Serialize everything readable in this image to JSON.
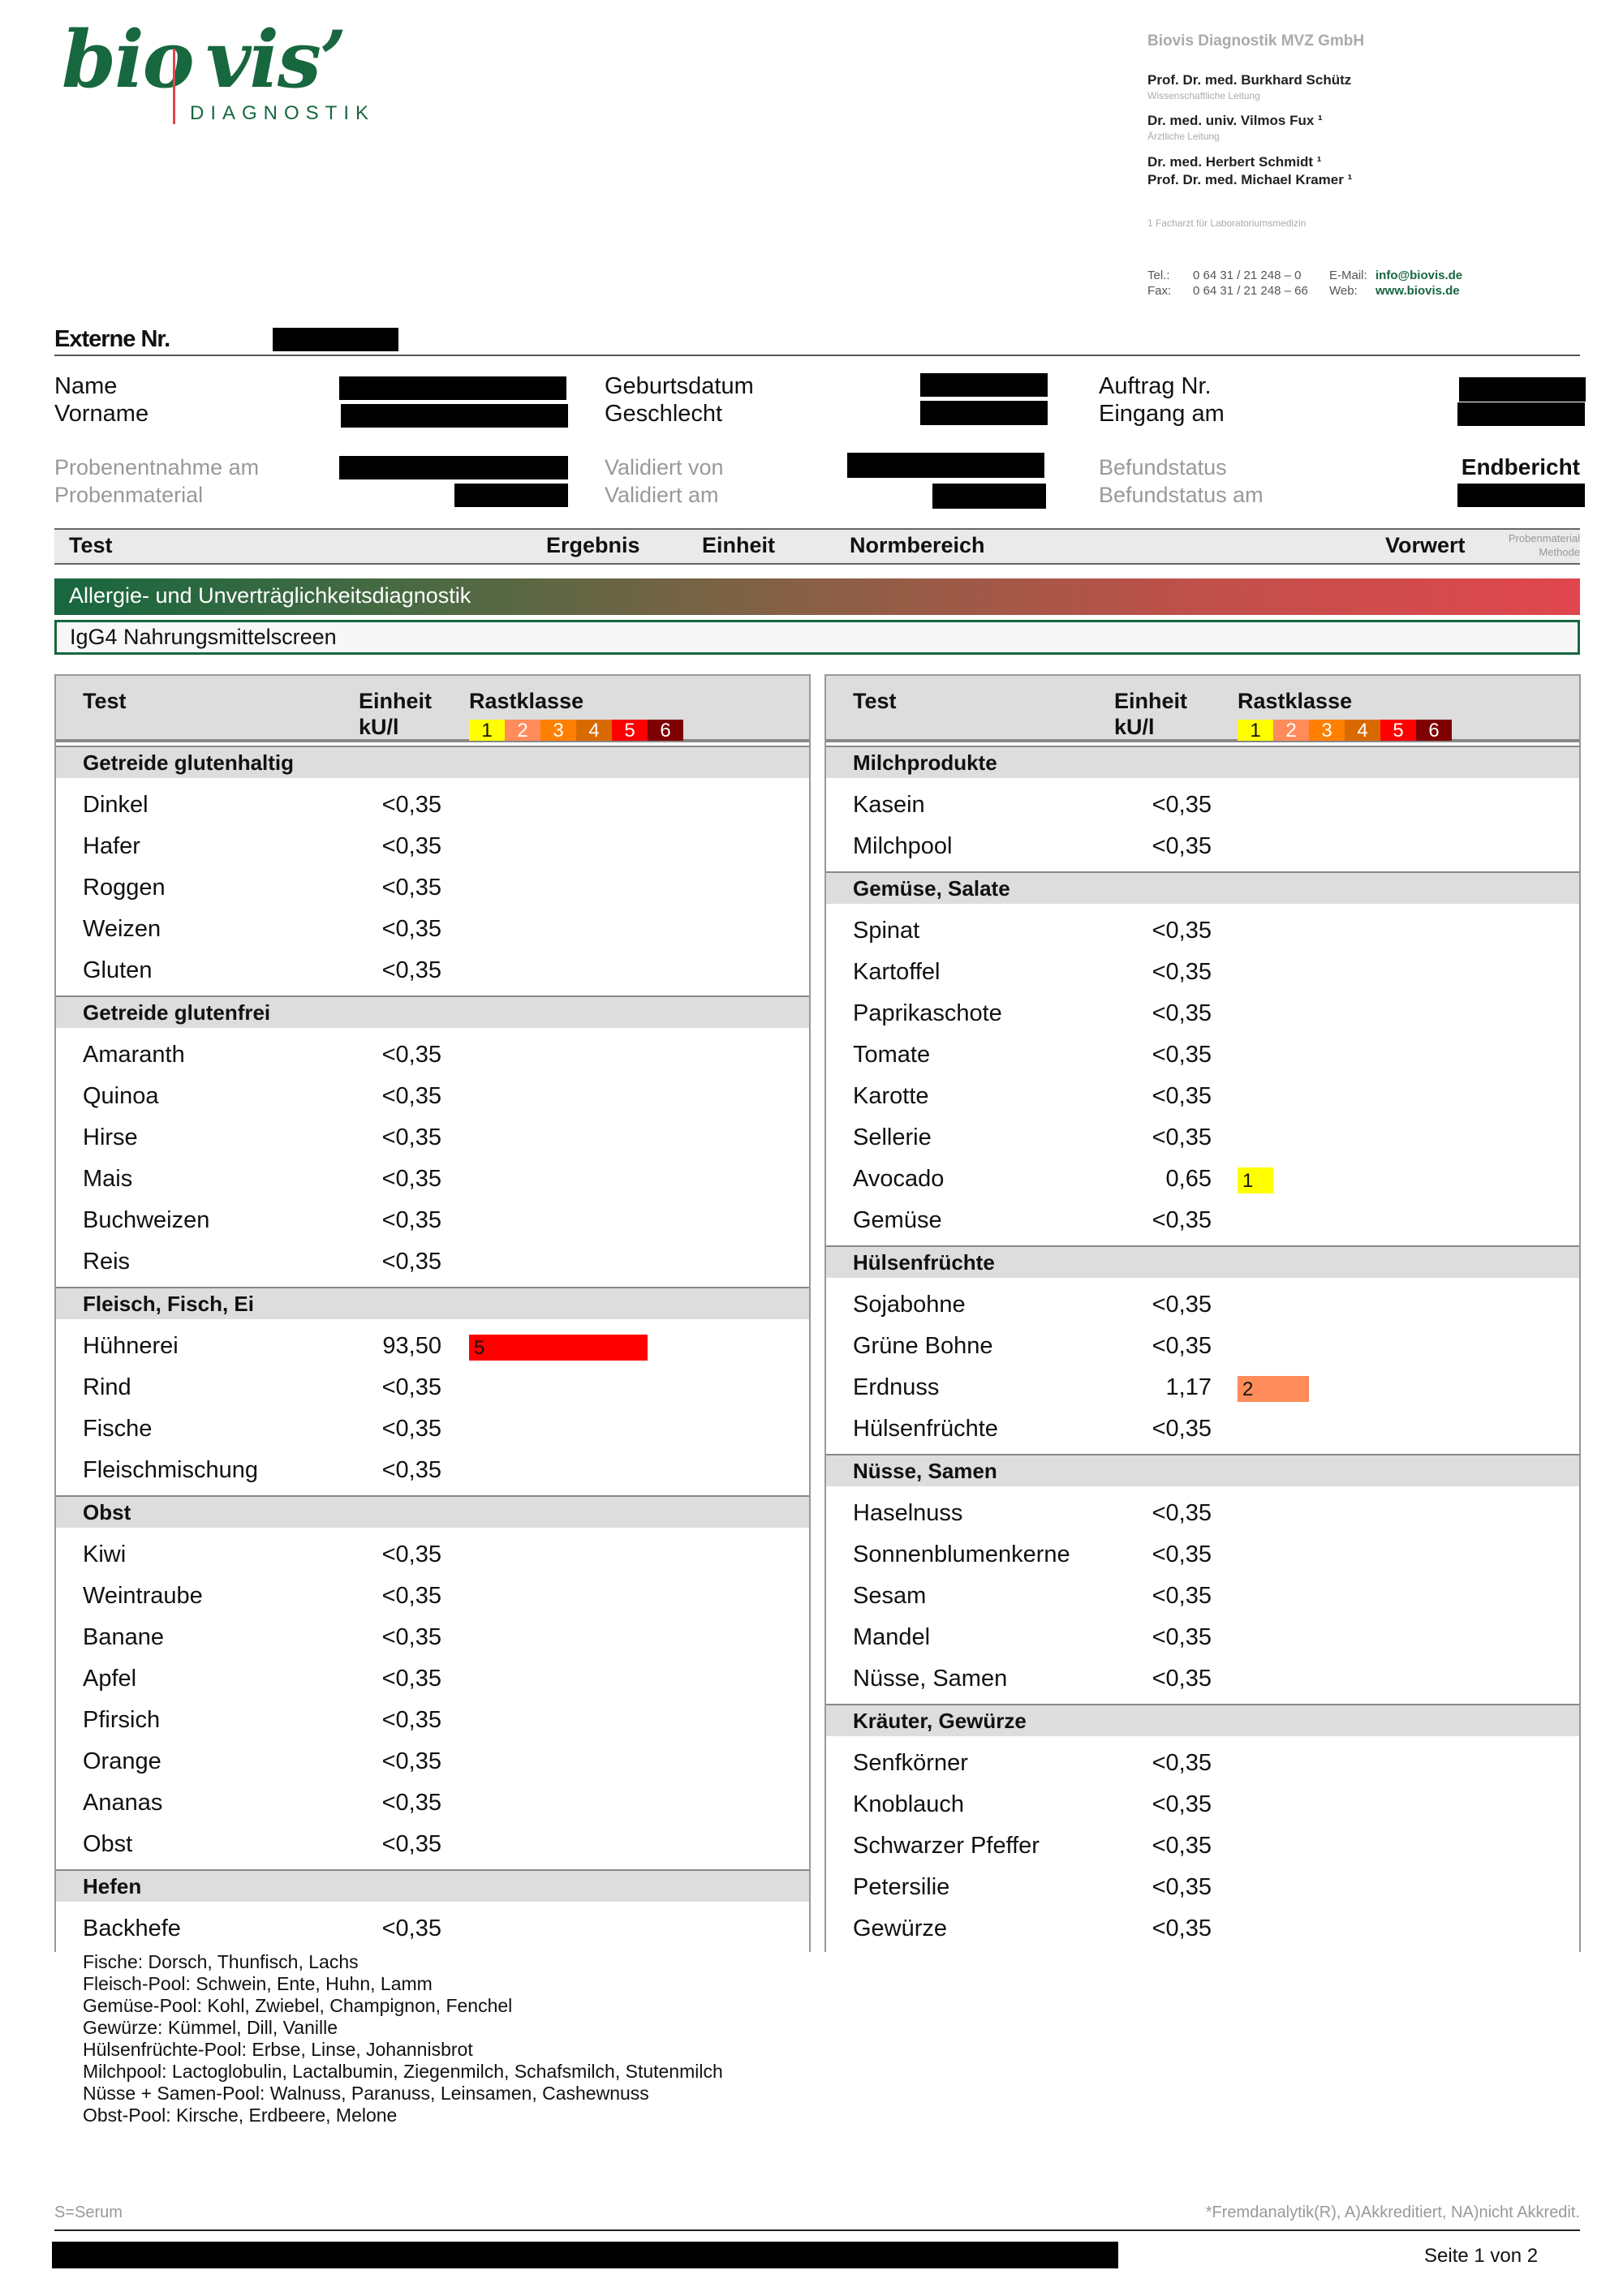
{
  "logo": {
    "main": "bio|vis’",
    "sub": "DIAGNOSTIK"
  },
  "lab": {
    "company": "Biovis Diagnostik MVZ GmbH",
    "staff": [
      {
        "name": "Prof. Dr. med. Burkhard Schütz",
        "role": "Wissenschaftliche Leitung"
      },
      {
        "name": "Dr. med. univ. Vilmos Fux ¹",
        "role": "Ärztliche Leitung"
      },
      {
        "name": "Dr. med. Herbert Schmidt ¹",
        "role": ""
      },
      {
        "name": "Prof. Dr. med. Michael Kramer ¹",
        "role": ""
      }
    ],
    "footnote": "1 Facharzt für Laboratoriumsmedizin",
    "tel_label": "Tel.:",
    "tel": "0 64 31 / 21 248 – 0",
    "fax_label": "Fax:",
    "fax": "0 64 31 / 21 248 – 66",
    "email_label": "E-Mail:",
    "email": "info@biovis.de",
    "web_label": "Web:",
    "web": "www.biovis.de"
  },
  "patient": {
    "externe_nr": "Externe Nr.",
    "name": "Name",
    "vorname": "Vorname",
    "geburtsdatum": "Geburtsdatum",
    "geschlecht": "Geschlecht",
    "auftrag": "Auftrag Nr.",
    "eingang": "Eingang am",
    "probenentnahme": "Probenentnahme am",
    "probenmaterial": "Probenmaterial",
    "validiert_von": "Validiert von",
    "validiert_am": "Validiert am",
    "befundstatus": "Befundstatus",
    "befundstatus_value": "Endbericht",
    "befundstatus_am": "Befundstatus am"
  },
  "columns": {
    "test": "Test",
    "ergebnis": "Ergebnis",
    "einheit": "Einheit",
    "normbereich": "Normbereich",
    "vorwert": "Vorwert",
    "probenmaterial": "Probenmaterial",
    "methode": "Methode"
  },
  "section": "Allergie- und Unverträglichkeitsdiagnostik",
  "subsection": "IgG4 Nahrungsmittelscreen",
  "table_header": {
    "test": "Test",
    "einheit": "Einheit",
    "unit": "kU/l",
    "rastklasse": "Rastklasse"
  },
  "class_colors": {
    "1": "#ffff00",
    "2": "#ff8c5a",
    "3": "#ff7f00",
    "4": "#d96a00",
    "5": "#ff0000",
    "6": "#7f0000"
  },
  "tables": [
    [
      {
        "category": "Getreide glutenhaltig",
        "items": [
          [
            "Dinkel",
            "<0,35",
            0
          ],
          [
            "Hafer",
            "<0,35",
            0
          ],
          [
            "Roggen",
            "<0,35",
            0
          ],
          [
            "Weizen",
            "<0,35",
            0
          ],
          [
            "Gluten",
            "<0,35",
            0
          ]
        ]
      },
      {
        "category": "Getreide glutenfrei",
        "items": [
          [
            "Amaranth",
            "<0,35",
            0
          ],
          [
            "Quinoa",
            "<0,35",
            0
          ],
          [
            "Hirse",
            "<0,35",
            0
          ],
          [
            "Mais",
            "<0,35",
            0
          ],
          [
            "Buchweizen",
            "<0,35",
            0
          ],
          [
            "Reis",
            "<0,35",
            0
          ]
        ]
      },
      {
        "category": "Fleisch, Fisch, Ei",
        "items": [
          [
            "Hühnerei",
            "93,50",
            5
          ],
          [
            "Rind",
            "<0,35",
            0
          ],
          [
            "Fische",
            "<0,35",
            0
          ],
          [
            "Fleischmischung",
            "<0,35",
            0
          ]
        ]
      },
      {
        "category": "Obst",
        "items": [
          [
            "Kiwi",
            "<0,35",
            0
          ],
          [
            "Weintraube",
            "<0,35",
            0
          ],
          [
            "Banane",
            "<0,35",
            0
          ],
          [
            "Apfel",
            "<0,35",
            0
          ],
          [
            "Pfirsich",
            "<0,35",
            0
          ],
          [
            "Orange",
            "<0,35",
            0
          ],
          [
            "Ananas",
            "<0,35",
            0
          ],
          [
            "Obst",
            "<0,35",
            0
          ]
        ]
      },
      {
        "category": "Hefen",
        "items": [
          [
            "Backhefe",
            "<0,35",
            0
          ]
        ]
      }
    ],
    [
      {
        "category": "Milchprodukte",
        "items": [
          [
            "Kasein",
            "<0,35",
            0
          ],
          [
            "Milchpool",
            "<0,35",
            0
          ]
        ]
      },
      {
        "category": "Gemüse, Salate",
        "items": [
          [
            "Spinat",
            "<0,35",
            0
          ],
          [
            "Kartoffel",
            "<0,35",
            0
          ],
          [
            "Paprikaschote",
            "<0,35",
            0
          ],
          [
            "Tomate",
            "<0,35",
            0
          ],
          [
            "Karotte",
            "<0,35",
            0
          ],
          [
            "Sellerie",
            "<0,35",
            0
          ],
          [
            "Avocado",
            "0,65",
            1
          ],
          [
            "Gemüse",
            "<0,35",
            0
          ]
        ]
      },
      {
        "category": "Hülsenfrüchte",
        "items": [
          [
            "Sojabohne",
            "<0,35",
            0
          ],
          [
            "Grüne Bohne",
            "<0,35",
            0
          ],
          [
            "Erdnuss",
            "1,17",
            2
          ],
          [
            "Hülsenfrüchte",
            "<0,35",
            0
          ]
        ]
      },
      {
        "category": "Nüsse, Samen",
        "items": [
          [
            "Haselnuss",
            "<0,35",
            0
          ],
          [
            "Sonnenblumenkerne",
            "<0,35",
            0
          ],
          [
            "Sesam",
            "<0,35",
            0
          ],
          [
            "Mandel",
            "<0,35",
            0
          ],
          [
            "Nüsse, Samen",
            "<0,35",
            0
          ]
        ]
      },
      {
        "category": "Kräuter, Gewürze",
        "items": [
          [
            "Senfkörner",
            "<0,35",
            0
          ],
          [
            "Knoblauch",
            "<0,35",
            0
          ],
          [
            "Schwarzer Pfeffer",
            "<0,35",
            0
          ],
          [
            "Petersilie",
            "<0,35",
            0
          ],
          [
            "Gewürze",
            "<0,35",
            0
          ]
        ]
      }
    ]
  ],
  "notes": [
    "Fische: Dorsch, Thunfisch, Lachs",
    "Fleisch-Pool: Schwein, Ente, Huhn, Lamm",
    "Gemüse-Pool: Kohl, Zwiebel, Champignon, Fenchel",
    "Gewürze: Kümmel, Dill, Vanille",
    "Hülsenfrüchte-Pool: Erbse, Linse, Johannisbrot",
    "Milchpool: Lactoglobulin, Lactalbumin, Ziegenmilch, Schafsmilch, Stutenmilch",
    "Nüsse + Samen-Pool: Walnuss, Paranuss, Leinsamen, Cashewnuss",
    "Obst-Pool: Kirsche, Erdbeere, Melone"
  ],
  "footer": {
    "serum": "S=Serum",
    "legend": "*Fremdanalytik(R), A)Akkreditiert, NA)nicht Akkredit.",
    "page": "Seite 1 von 2"
  }
}
